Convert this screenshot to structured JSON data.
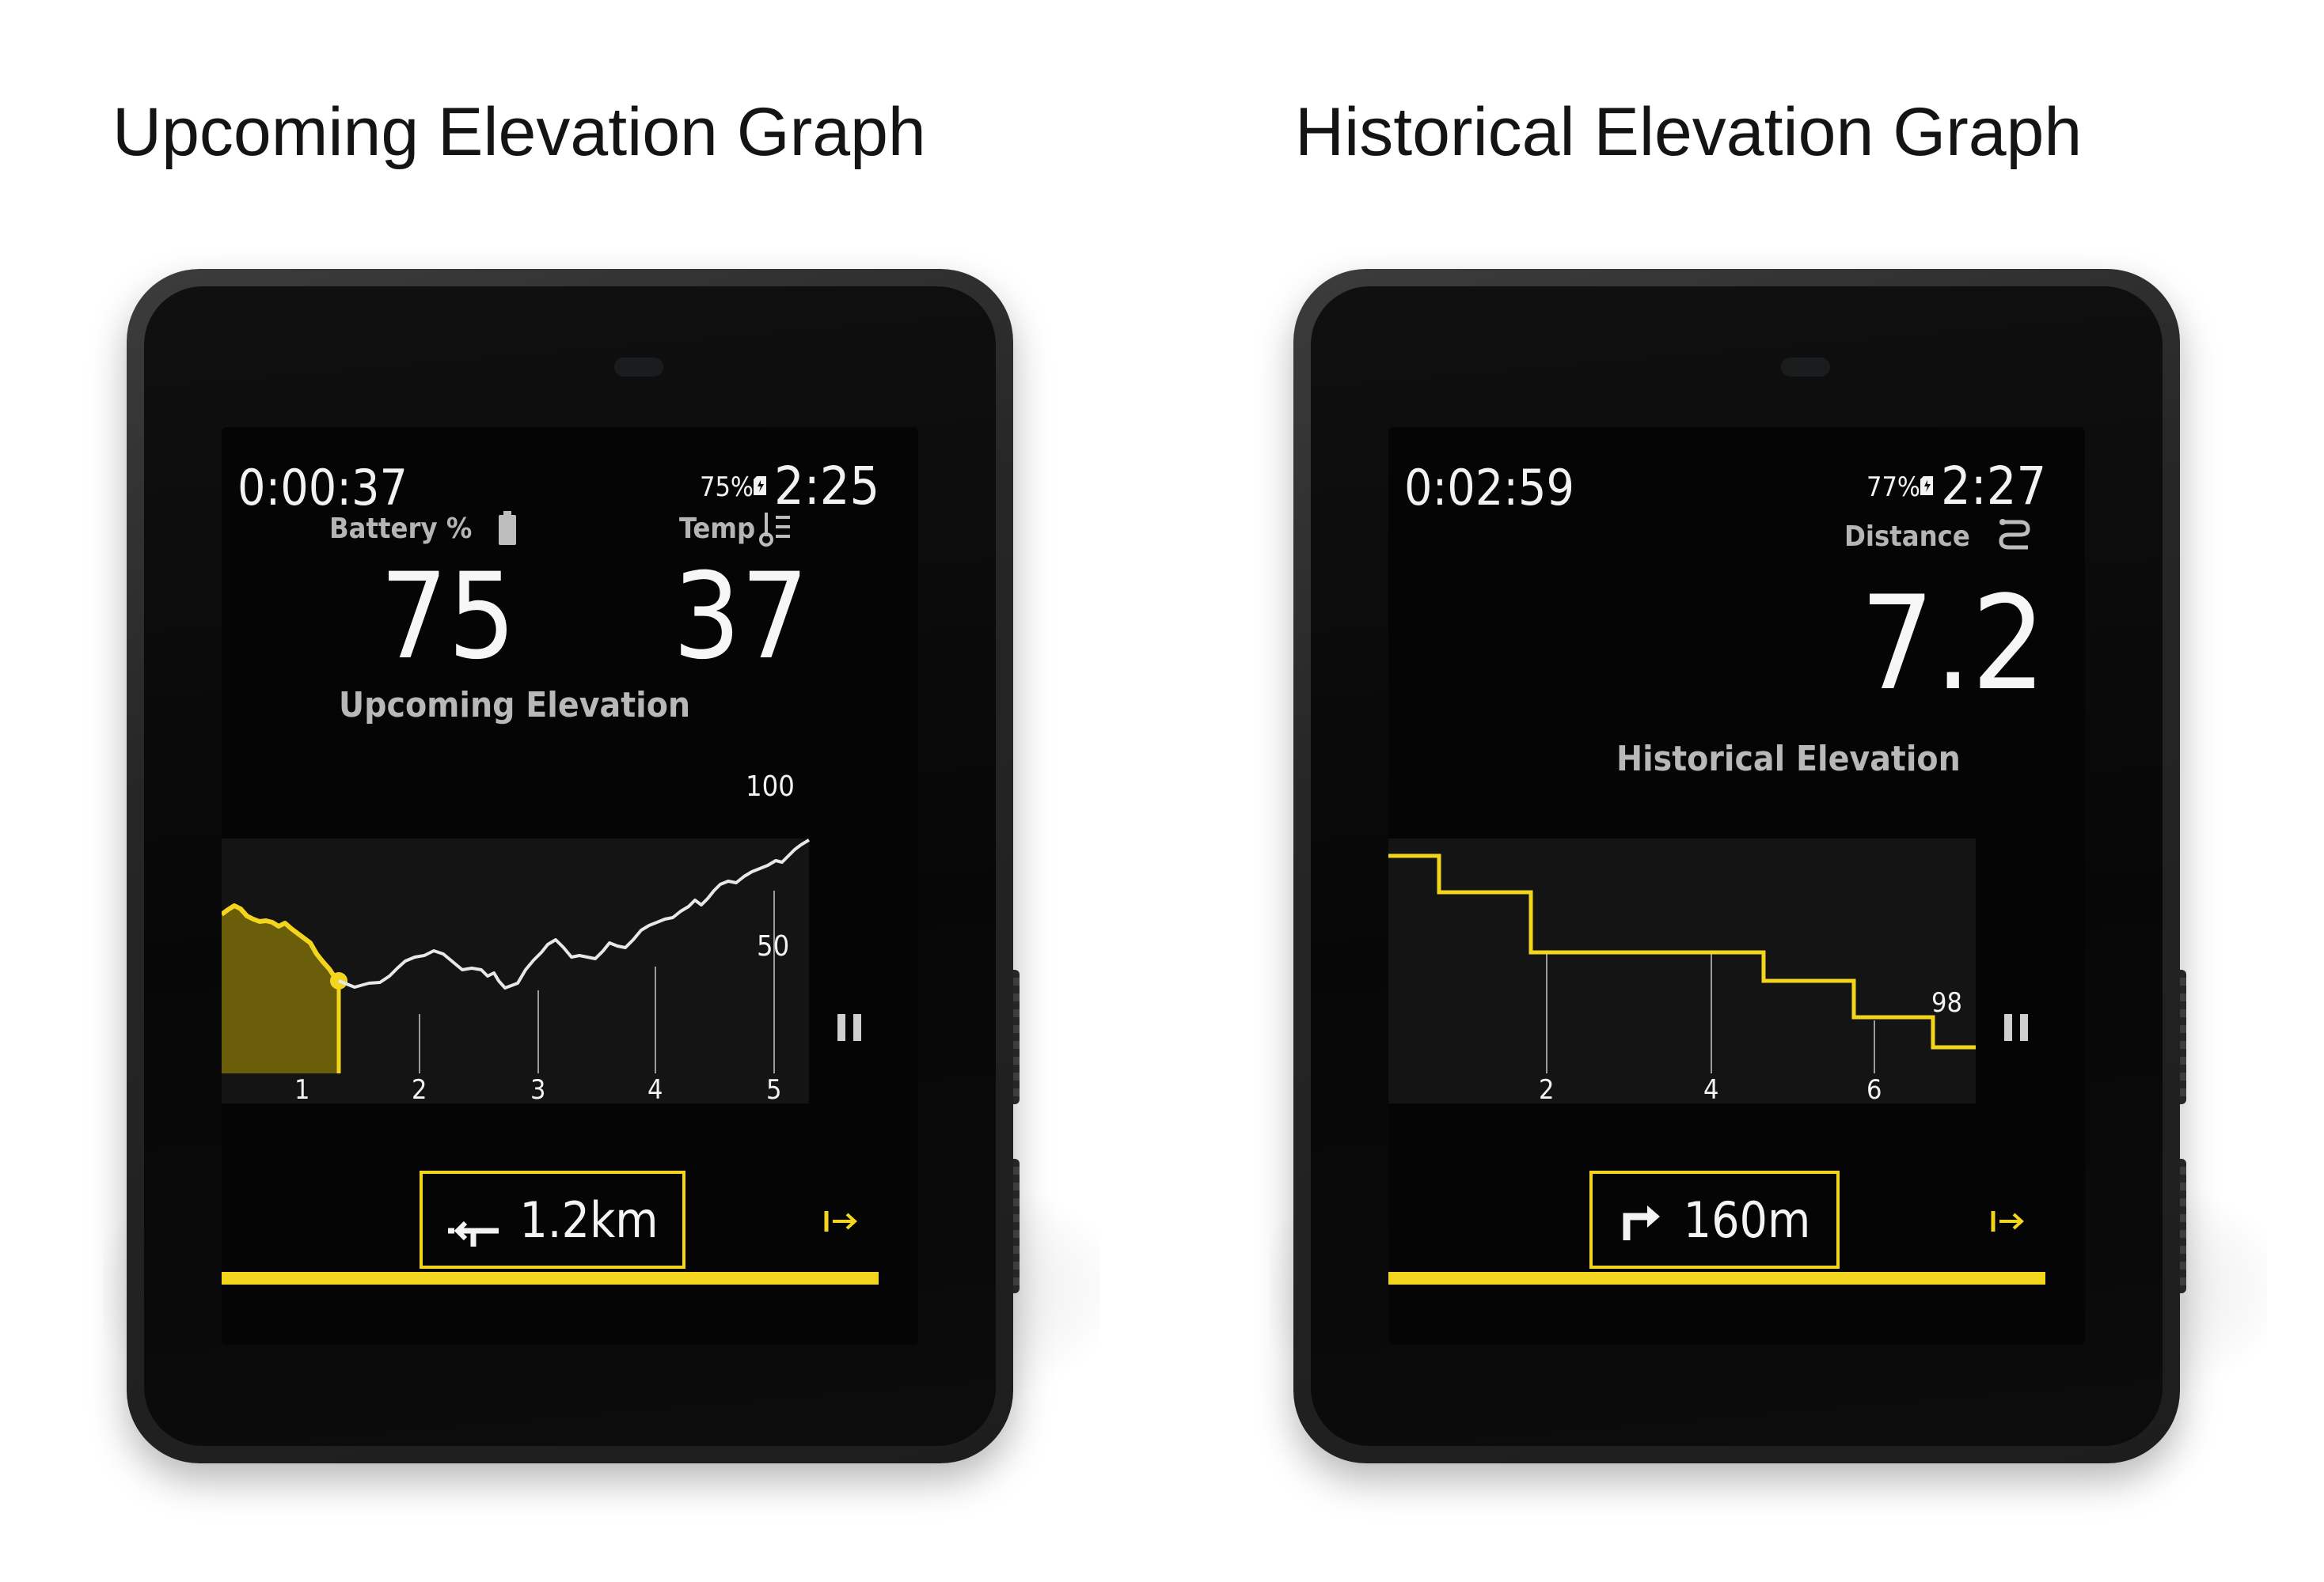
{
  "captions": {
    "left": "Upcoming Elevation Graph",
    "right": "Historical Elevation Graph"
  },
  "colors": {
    "accent": "#f2d51c",
    "screen_bg": "#050505",
    "plot_bg": "#141414",
    "text": "#f2f2f2"
  },
  "left_device": {
    "status": {
      "elapsed": "0:00:37",
      "battery": "75%",
      "clock": "2:25"
    },
    "fields": [
      {
        "label": "Battery %",
        "value": "75",
        "icon": "battery-icon"
      },
      {
        "label": "Temp",
        "value": "37",
        "icon": "thermometer-icon"
      }
    ],
    "graph": {
      "title": "Upcoming Elevation",
      "y_labels": [
        "100",
        "50"
      ],
      "x_labels": [
        "1",
        "2",
        "3",
        "4",
        "5"
      ]
    },
    "turn": {
      "distance": "1.2km",
      "icon": "turn-left-icon"
    },
    "route_icon": "route-end-icon",
    "pause_icon": "pause-icon"
  },
  "right_device": {
    "status": {
      "elapsed": "0:02:59",
      "battery": "77%",
      "clock": "2:27"
    },
    "fields": [
      {
        "label": "Distance",
        "value": "7.2",
        "icon": "route-icon"
      }
    ],
    "graph": {
      "title": "Historical Elevation",
      "current_value": "98",
      "x_labels": [
        "2",
        "4",
        "6"
      ]
    },
    "turn": {
      "distance": "160m",
      "icon": "turn-right-icon"
    },
    "route_icon": "route-end-icon",
    "pause_icon": "pause-icon"
  }
}
